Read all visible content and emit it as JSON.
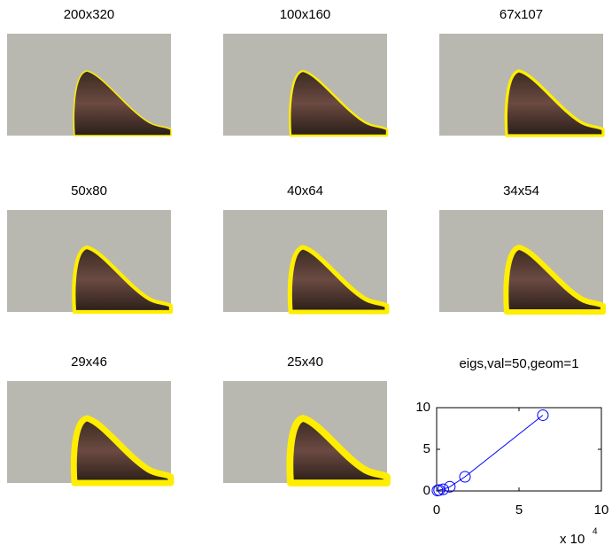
{
  "panels": [
    "200x320",
    "100x160",
    "67x107",
    "50x80",
    "40x64",
    "34x54",
    "29x46",
    "25x40"
  ],
  "chart_data": {
    "type": "line",
    "title": "eigs,val=50,geom=1",
    "x": [
      0.05,
      0.15,
      0.4,
      0.8,
      1.72,
      6.45
    ],
    "values": [
      0.05,
      0.1,
      0.2,
      0.5,
      1.7,
      9.1
    ],
    "color": "#0000ff",
    "xlim": [
      0,
      10
    ],
    "ylim": [
      0,
      10
    ],
    "xticks": [
      0,
      5,
      10
    ],
    "yticks": [
      0,
      5,
      10
    ],
    "x_multiplier": "x 10",
    "x_multiplier_exponent": "4"
  }
}
